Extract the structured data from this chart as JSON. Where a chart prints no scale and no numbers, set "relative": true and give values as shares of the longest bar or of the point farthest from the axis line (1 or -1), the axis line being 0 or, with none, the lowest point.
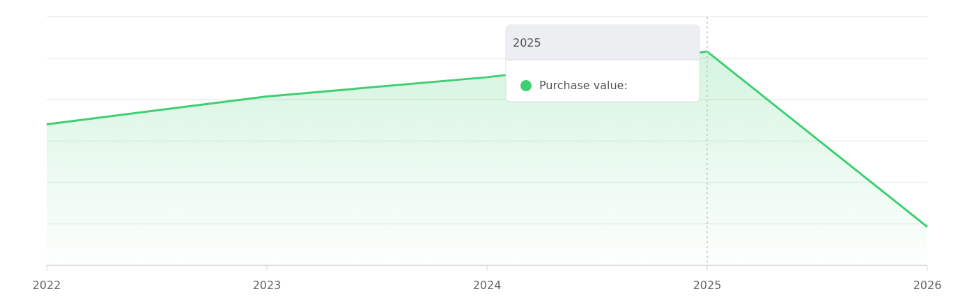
{
  "chart_data": {
    "type": "area",
    "relative": true,
    "categories": [
      "2022",
      "2023",
      "2024",
      "2025",
      "2026"
    ],
    "series": [
      {
        "name": "Purchase value:",
        "color": "#3ecf72",
        "values": [
          0.66,
          0.79,
          0.88,
          1,
          0.18
        ]
      }
    ],
    "grid": "y",
    "legend": "top",
    "marker": "none",
    "ref_lines": [
      {
        "axis": "x",
        "value": "2025",
        "color": "#c8c8c8",
        "line_style": "dotted"
      }
    ],
    "annotations": [
      "2025"
    ]
  }
}
